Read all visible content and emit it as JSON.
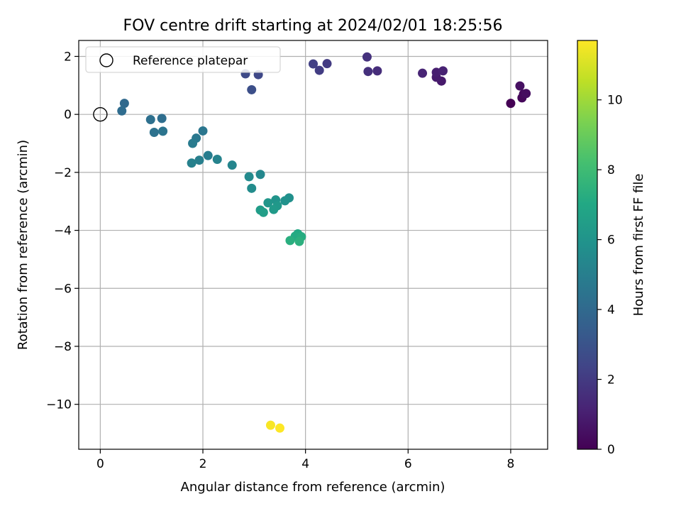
{
  "chart_data": {
    "type": "scatter",
    "title": "FOV centre drift starting at 2024/02/01 18:25:56",
    "xlabel": "Angular distance from reference (arcmin)",
    "ylabel": "Rotation from reference (arcmin)",
    "xlim": [
      -0.42,
      8.72
    ],
    "ylim": [
      -11.55,
      2.55
    ],
    "xticks": [
      0,
      2,
      4,
      6,
      8
    ],
    "yticks": [
      2,
      0,
      -2,
      -4,
      -6,
      -8,
      -10
    ],
    "xtick_labels": [
      "0",
      "2",
      "4",
      "6",
      "8"
    ],
    "ytick_labels": [
      "2",
      "0",
      "−2",
      "−4",
      "−6",
      "−8",
      "−10"
    ],
    "grid": true,
    "legend": {
      "placement": "top-left",
      "label": "Reference platepar"
    },
    "reference_point": {
      "x": 0,
      "y": 0
    },
    "colorbar": {
      "label": "Hours from first FF file",
      "range": [
        0,
        11.7
      ],
      "ticks": [
        0,
        2,
        4,
        6,
        8,
        10
      ],
      "tick_labels": [
        "0",
        "2",
        "4",
        "6",
        "8",
        "10"
      ],
      "colormap": "viridis"
    },
    "points": [
      {
        "x": 8.0,
        "y": 0.38,
        "c": 0.0
      },
      {
        "x": 8.22,
        "y": 0.57,
        "c": 0.2
      },
      {
        "x": 8.25,
        "y": 0.7,
        "c": 0.3
      },
      {
        "x": 8.3,
        "y": 0.72,
        "c": 0.4
      },
      {
        "x": 8.18,
        "y": 0.98,
        "c": 0.5
      },
      {
        "x": 6.65,
        "y": 1.15,
        "c": 0.8
      },
      {
        "x": 6.55,
        "y": 1.28,
        "c": 0.9
      },
      {
        "x": 6.55,
        "y": 1.45,
        "c": 1.0
      },
      {
        "x": 6.68,
        "y": 1.5,
        "c": 1.1
      },
      {
        "x": 6.28,
        "y": 1.42,
        "c": 1.2
      },
      {
        "x": 5.4,
        "y": 1.5,
        "c": 1.5
      },
      {
        "x": 5.22,
        "y": 1.48,
        "c": 1.6
      },
      {
        "x": 5.2,
        "y": 1.98,
        "c": 1.7
      },
      {
        "x": 4.42,
        "y": 1.75,
        "c": 2.0
      },
      {
        "x": 4.27,
        "y": 1.52,
        "c": 2.1
      },
      {
        "x": 4.15,
        "y": 1.74,
        "c": 2.2
      },
      {
        "x": 3.08,
        "y": 1.37,
        "c": 2.5
      },
      {
        "x": 2.83,
        "y": 1.4,
        "c": 2.6
      },
      {
        "x": 2.95,
        "y": 0.85,
        "c": 2.8
      },
      {
        "x": 0.47,
        "y": 0.38,
        "c": 4.0
      },
      {
        "x": 0.42,
        "y": 0.12,
        "c": 4.1
      },
      {
        "x": 1.2,
        "y": -0.14,
        "c": 4.2
      },
      {
        "x": 0.98,
        "y": -0.18,
        "c": 4.3
      },
      {
        "x": 1.05,
        "y": -0.62,
        "c": 4.4
      },
      {
        "x": 1.22,
        "y": -0.58,
        "c": 4.5
      },
      {
        "x": 2.0,
        "y": -0.57,
        "c": 4.6
      },
      {
        "x": 1.87,
        "y": -0.82,
        "c": 4.7
      },
      {
        "x": 1.8,
        "y": -1.0,
        "c": 4.8
      },
      {
        "x": 2.1,
        "y": -1.42,
        "c": 4.9
      },
      {
        "x": 1.93,
        "y": -1.58,
        "c": 5.0
      },
      {
        "x": 1.78,
        "y": -1.68,
        "c": 5.1
      },
      {
        "x": 2.28,
        "y": -1.55,
        "c": 5.2
      },
      {
        "x": 2.57,
        "y": -1.75,
        "c": 5.3
      },
      {
        "x": 3.12,
        "y": -2.07,
        "c": 5.4
      },
      {
        "x": 2.9,
        "y": -2.15,
        "c": 5.5
      },
      {
        "x": 2.95,
        "y": -2.55,
        "c": 5.6
      },
      {
        "x": 3.68,
        "y": -2.88,
        "c": 5.8
      },
      {
        "x": 3.6,
        "y": -2.98,
        "c": 5.9
      },
      {
        "x": 3.42,
        "y": -2.95,
        "c": 6.0
      },
      {
        "x": 3.27,
        "y": -3.05,
        "c": 6.1
      },
      {
        "x": 3.45,
        "y": -3.15,
        "c": 6.2
      },
      {
        "x": 3.38,
        "y": -3.28,
        "c": 6.3
      },
      {
        "x": 3.12,
        "y": -3.3,
        "c": 6.4
      },
      {
        "x": 3.18,
        "y": -3.38,
        "c": 6.5
      },
      {
        "x": 3.85,
        "y": -4.12,
        "c": 7.0
      },
      {
        "x": 3.8,
        "y": -4.2,
        "c": 7.1
      },
      {
        "x": 3.92,
        "y": -4.22,
        "c": 7.2
      },
      {
        "x": 3.7,
        "y": -4.35,
        "c": 7.3
      },
      {
        "x": 3.88,
        "y": -4.38,
        "c": 7.4
      },
      {
        "x": 3.32,
        "y": -10.72,
        "c": 11.6
      },
      {
        "x": 3.5,
        "y": -10.82,
        "c": 11.7
      }
    ]
  }
}
